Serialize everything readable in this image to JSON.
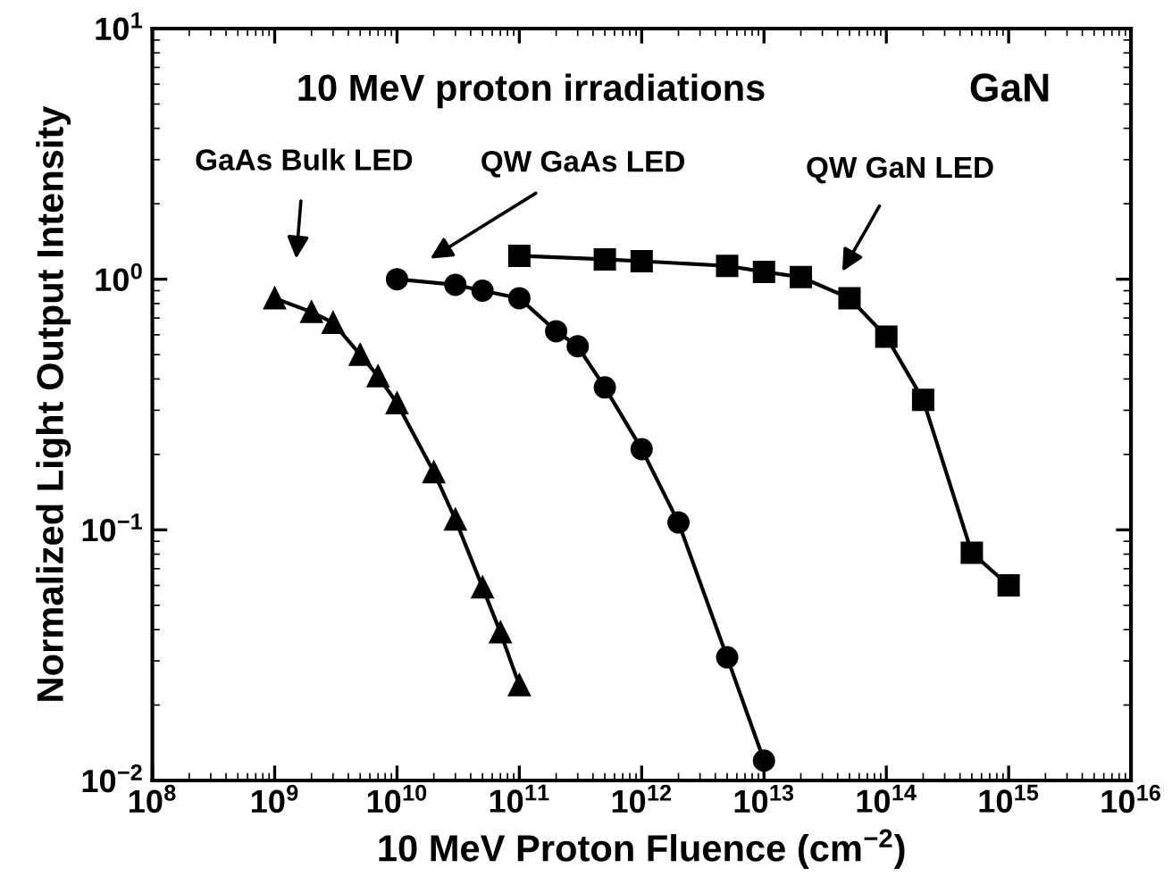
{
  "chart_data": {
    "type": "line",
    "xlabel": "10 MeV Proton Fluence (cm$^{−2}$)",
    "ylabel": "Normalized Light Output Intensity",
    "log": "xy",
    "xlim": [
      100000000.0,
      1e+16
    ],
    "ylim": [
      0.01,
      10
    ],
    "xticks": [
      {
        "value": 100000000.0,
        "label": "10$^{8}$"
      },
      {
        "value": 1000000000.0,
        "label": "10$^{9}$"
      },
      {
        "value": 10000000000.0,
        "label": "10$^{10}$"
      },
      {
        "value": 100000000000.0,
        "label": "10$^{11}$"
      },
      {
        "value": 1000000000000.0,
        "label": "10$^{12}$"
      },
      {
        "value": 10000000000000.0,
        "label": "10$^{13}$"
      },
      {
        "value": 100000000000000.0,
        "label": "10$^{14}$"
      },
      {
        "value": 1000000000000000.0,
        "label": "10$^{15}$"
      },
      {
        "value": 1e+16,
        "label": "10$^{16}$"
      }
    ],
    "yticks": [
      {
        "value": 0.01,
        "label": "10$^{−2}$"
      },
      {
        "value": 0.1,
        "label": "10$^{−1}$"
      },
      {
        "value": 1,
        "label": "10$^{0}$"
      },
      {
        "value": 10,
        "label": "10$^{1}$"
      }
    ],
    "grid": false,
    "series": [
      {
        "color": "#000000",
        "marker": "triangle",
        "x": [
          1000000000.0,
          2000000000.0,
          3000000000.0,
          5000000000.0,
          7000000000.0,
          10000000000.0,
          20000000000.0,
          30000000000.0,
          50000000000.0,
          70000000000.0,
          100000000000.0
        ],
        "values": [
          0.84,
          0.74,
          0.67,
          0.5,
          0.41,
          0.32,
          0.17,
          0.11,
          0.059,
          0.039,
          0.024
        ]
      },
      {
        "color": "#000000",
        "marker": "circle",
        "x": [
          10000000000.0,
          30000000000.0,
          50000000000.0,
          100000000000.0,
          200000000000.0,
          300000000000.0,
          500000000000.0,
          1000000000000.0,
          2000000000000.0,
          5000000000000.0,
          10000000000000.0
        ],
        "values": [
          1.0,
          0.95,
          0.9,
          0.84,
          0.62,
          0.54,
          0.37,
          0.21,
          0.107,
          0.031,
          0.012
        ]
      },
      {
        "color": "#000000",
        "marker": "square",
        "x": [
          100000000000.0,
          500000000000.0,
          1000000000000.0,
          5000000000000.0,
          10000000000000.0,
          20000000000000.0,
          50000000000000.0,
          100000000000000.0,
          200000000000000.0,
          500000000000000.0,
          1000000000000000.0
        ],
        "values": [
          1.24,
          1.2,
          1.18,
          1.13,
          1.07,
          1.02,
          0.84,
          0.59,
          0.33,
          0.081,
          0.06
        ]
      }
    ],
    "annotations": [
      "10 MeV proton irradiations",
      "GaN",
      "GaAs Bulk LED",
      "QW GaAs LED",
      "QW GaN LED"
    ]
  }
}
